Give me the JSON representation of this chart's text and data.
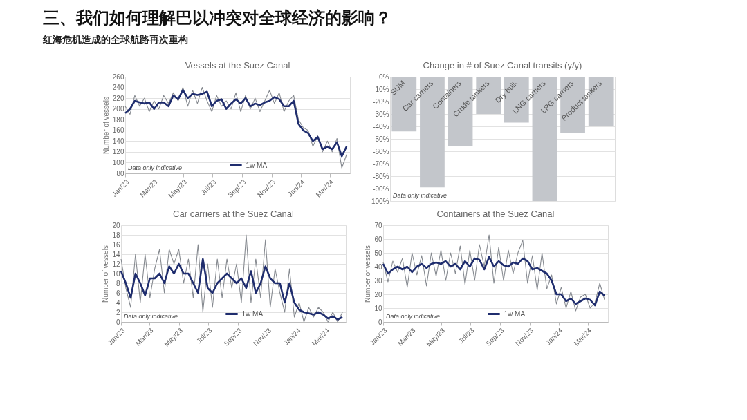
{
  "chart_data": [
    {
      "type": "other",
      "title": "三、我们如何理解巴以冲突对全球经济的影响？",
      "subtitle": "红海危机造成的全球航路再次重构"
    },
    {
      "type": "line",
      "title": "Vessels at the Suez Canal",
      "ylabel": "Number of vessels",
      "grid": "y",
      "legend": "bottom",
      "annotations": [
        "Data only indicative"
      ],
      "x": [
        "2023-01-01",
        "2023-01-11",
        "2023-01-21",
        "2023-01-31",
        "2023-02-10",
        "2023-02-20",
        "2023-03-02",
        "2023-03-12",
        "2023-03-22",
        "2023-04-01",
        "2023-04-11",
        "2023-04-21",
        "2023-05-01",
        "2023-05-11",
        "2023-05-21",
        "2023-05-31",
        "2023-06-10",
        "2023-06-20",
        "2023-06-30",
        "2023-07-10",
        "2023-07-20",
        "2023-07-30",
        "2023-08-09",
        "2023-08-19",
        "2023-08-29",
        "2023-09-08",
        "2023-09-18",
        "2023-09-28",
        "2023-10-08",
        "2023-10-18",
        "2023-10-28",
        "2023-11-07",
        "2023-11-17",
        "2023-11-27",
        "2023-12-07",
        "2023-12-17",
        "2023-12-27",
        "2024-01-06",
        "2024-01-16",
        "2024-01-26",
        "2024-02-05",
        "2024-02-15",
        "2024-02-25",
        "2024-03-06",
        "2024-03-16",
        "2024-03-26",
        "2024-04-05"
      ],
      "xlim": [
        "2023-01-01",
        "2024-04-12"
      ],
      "xticks": [
        {
          "value": "2023-01-01",
          "label": "Jan/23"
        },
        {
          "value": "2023-03-01",
          "label": "Mar/23"
        },
        {
          "value": "2023-05-01",
          "label": "May/23"
        },
        {
          "value": "2023-07-01",
          "label": "Jul/23"
        },
        {
          "value": "2023-09-01",
          "label": "Sep/23"
        },
        {
          "value": "2023-11-01",
          "label": "Nov/23"
        },
        {
          "value": "2024-01-01",
          "label": "Jan/24"
        },
        {
          "value": "2024-03-01",
          "label": "Mar/24"
        }
      ],
      "ylim": [
        80,
        260
      ],
      "yticks": [
        80,
        100,
        120,
        140,
        160,
        180,
        200,
        220,
        240,
        260
      ],
      "series": [
        {
          "color": "#868a90",
          "values": [
            205,
            190,
            225,
            205,
            220,
            195,
            215,
            200,
            225,
            210,
            230,
            215,
            240,
            205,
            235,
            210,
            240,
            215,
            195,
            225,
            205,
            215,
            200,
            230,
            195,
            225,
            200,
            220,
            195,
            215,
            235,
            210,
            230,
            195,
            215,
            225,
            180,
            165,
            160,
            130,
            150,
            120,
            140,
            120,
            145,
            90,
            115
          ]
        },
        {
          "name": "1w MA",
          "color": "#1f2d6e",
          "values": [
            192,
            200,
            215,
            212,
            210,
            212,
            200,
            212,
            212,
            205,
            225,
            218,
            235,
            220,
            228,
            226,
            228,
            232,
            205,
            215,
            218,
            200,
            210,
            218,
            210,
            220,
            205,
            210,
            207,
            212,
            215,
            222,
            218,
            205,
            205,
            215,
            172,
            160,
            155,
            140,
            148,
            125,
            130,
            125,
            138,
            112,
            130
          ]
        }
      ]
    },
    {
      "type": "bar",
      "title": "Change in # of Suez Canal transits (y/y)",
      "grid": "y",
      "annotations": [
        "Data only indicative"
      ],
      "categories": [
        "SUM",
        "Car carriers",
        "Containers",
        "Crude tankers",
        "Dry bulk",
        "LNG carriers",
        "LPG carriers",
        "Product tankers"
      ],
      "values": [
        -44,
        -89,
        -56,
        -30,
        -37,
        -100,
        -45,
        -40
      ],
      "color": "#c3c6cb",
      "ylim": [
        -100,
        0
      ],
      "yticks": [
        {
          "value": 0,
          "label": "0%"
        },
        {
          "value": -10,
          "label": "-10%"
        },
        {
          "value": -20,
          "label": "-20%"
        },
        {
          "value": -30,
          "label": "-30%"
        },
        {
          "value": -40,
          "label": "-40%"
        },
        {
          "value": -50,
          "label": "-50%"
        },
        {
          "value": -60,
          "label": "-60%"
        },
        {
          "value": -70,
          "label": "-70%"
        },
        {
          "value": -80,
          "label": "-80%"
        },
        {
          "value": -90,
          "label": "-90%"
        },
        {
          "value": -100,
          "label": "-100%"
        }
      ]
    },
    {
      "type": "line",
      "title": "Car carriers at the Suez Canal",
      "ylabel": "Number of vessels",
      "grid": "y",
      "legend": "bottom",
      "annotations": [
        "Data only indicative"
      ],
      "x": [
        "2023-01-01",
        "2023-01-11",
        "2023-01-21",
        "2023-01-31",
        "2023-02-10",
        "2023-02-20",
        "2023-03-02",
        "2023-03-12",
        "2023-03-22",
        "2023-04-01",
        "2023-04-11",
        "2023-04-21",
        "2023-05-01",
        "2023-05-11",
        "2023-05-21",
        "2023-05-31",
        "2023-06-10",
        "2023-06-20",
        "2023-06-30",
        "2023-07-10",
        "2023-07-20",
        "2023-07-30",
        "2023-08-09",
        "2023-08-19",
        "2023-08-29",
        "2023-09-08",
        "2023-09-18",
        "2023-09-28",
        "2023-10-08",
        "2023-10-18",
        "2023-10-28",
        "2023-11-07",
        "2023-11-17",
        "2023-11-27",
        "2023-12-07",
        "2023-12-17",
        "2023-12-27",
        "2024-01-06",
        "2024-01-16",
        "2024-01-26",
        "2024-02-05",
        "2024-02-15",
        "2024-02-25",
        "2024-03-06",
        "2024-03-16",
        "2024-03-26",
        "2024-04-05"
      ],
      "xlim": [
        "2023-01-01",
        "2024-04-12"
      ],
      "xticks": [
        {
          "value": "2023-01-01",
          "label": "Jan/23"
        },
        {
          "value": "2023-03-01",
          "label": "Mar/23"
        },
        {
          "value": "2023-05-01",
          "label": "May/23"
        },
        {
          "value": "2023-07-01",
          "label": "Jul/23"
        },
        {
          "value": "2023-09-01",
          "label": "Sep/23"
        },
        {
          "value": "2023-11-01",
          "label": "Nov/23"
        },
        {
          "value": "2024-01-01",
          "label": "Jan/24"
        },
        {
          "value": "2024-03-01",
          "label": "Mar/24"
        }
      ],
      "ylim": [
        0,
        20
      ],
      "yticks": [
        0,
        2,
        4,
        6,
        8,
        10,
        12,
        14,
        16,
        18,
        20
      ],
      "series": [
        {
          "color": "#868a90",
          "values": [
            13,
            7,
            3,
            14,
            4,
            14,
            5,
            11,
            15,
            6,
            15,
            12,
            15,
            8,
            13,
            5,
            16,
            2,
            12,
            3,
            13,
            5,
            13,
            7,
            12,
            4,
            18,
            4,
            13,
            5,
            17,
            3,
            11,
            6,
            2,
            11,
            1,
            4,
            0,
            3,
            1,
            3,
            2,
            0,
            2,
            0,
            2
          ]
        },
        {
          "name": "1w MA",
          "color": "#1f2d6e",
          "values": [
            10.5,
            8,
            5,
            10,
            8,
            5.5,
            9,
            9,
            10,
            8,
            11.5,
            10,
            12,
            10,
            10,
            8,
            6,
            13,
            7,
            6,
            8,
            9,
            10,
            9,
            8,
            9,
            7,
            10.5,
            6,
            8,
            11.5,
            9,
            8,
            8,
            4,
            8,
            4,
            2.5,
            2,
            1.8,
            1.5,
            2,
            1.5,
            0.7,
            1.2,
            0.5,
            1
          ]
        }
      ]
    },
    {
      "type": "line",
      "title": "Containers at the Suez Canal",
      "ylabel": "Number of vessels",
      "grid": "y",
      "legend": "bottom",
      "annotations": [
        "Data only indicative"
      ],
      "x": [
        "2023-01-01",
        "2023-01-11",
        "2023-01-21",
        "2023-01-31",
        "2023-02-10",
        "2023-02-20",
        "2023-03-02",
        "2023-03-12",
        "2023-03-22",
        "2023-04-01",
        "2023-04-11",
        "2023-04-21",
        "2023-05-01",
        "2023-05-11",
        "2023-05-21",
        "2023-05-31",
        "2023-06-10",
        "2023-06-20",
        "2023-06-30",
        "2023-07-10",
        "2023-07-20",
        "2023-07-30",
        "2023-08-09",
        "2023-08-19",
        "2023-08-29",
        "2023-09-08",
        "2023-09-18",
        "2023-09-28",
        "2023-10-08",
        "2023-10-18",
        "2023-10-28",
        "2023-11-07",
        "2023-11-17",
        "2023-11-27",
        "2023-12-07",
        "2023-12-17",
        "2023-12-27",
        "2024-01-06",
        "2024-01-16",
        "2024-01-26",
        "2024-02-05",
        "2024-02-15",
        "2024-02-25",
        "2024-03-06",
        "2024-03-16",
        "2024-03-26",
        "2024-04-05"
      ],
      "xlim": [
        "2023-01-01",
        "2024-04-12"
      ],
      "xticks": [
        {
          "value": "2023-01-01",
          "label": "Jan/23"
        },
        {
          "value": "2023-03-01",
          "label": "Mar/23"
        },
        {
          "value": "2023-05-01",
          "label": "May/23"
        },
        {
          "value": "2023-07-01",
          "label": "Jul/23"
        },
        {
          "value": "2023-09-01",
          "label": "Sep/23"
        },
        {
          "value": "2023-11-01",
          "label": "Nov/23"
        },
        {
          "value": "2024-01-01",
          "label": "Jan/24"
        },
        {
          "value": "2024-03-01",
          "label": "Mar/24"
        }
      ],
      "ylim": [
        0,
        70
      ],
      "yticks": [
        0,
        10,
        20,
        30,
        40,
        50,
        60,
        70
      ],
      "series": [
        {
          "color": "#868a90",
          "values": [
            43,
            29,
            44,
            36,
            46,
            25,
            50,
            34,
            48,
            26,
            50,
            33,
            52,
            30,
            50,
            35,
            55,
            27,
            52,
            30,
            56,
            40,
            63,
            28,
            54,
            30,
            52,
            35,
            50,
            59,
            28,
            48,
            23,
            50,
            24,
            34,
            13,
            25,
            10,
            22,
            8,
            18,
            20,
            10,
            14,
            28,
            16
          ]
        },
        {
          "name": "1w MA",
          "color": "#1f2d6e",
          "values": [
            42,
            35,
            38,
            40,
            38,
            40,
            36,
            40,
            42,
            39,
            42,
            43,
            42,
            44,
            40,
            42,
            38,
            44,
            40,
            46,
            45,
            38,
            47,
            40,
            44,
            41,
            40,
            43,
            42,
            46,
            44,
            38,
            39,
            37,
            35,
            30,
            20,
            20,
            15,
            17,
            13,
            15,
            17,
            16,
            12,
            22,
            19
          ]
        }
      ]
    }
  ]
}
